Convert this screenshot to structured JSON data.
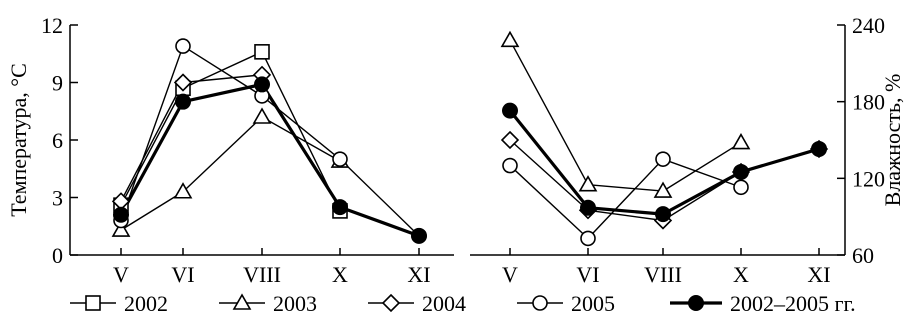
{
  "chart_data": [
    {
      "type": "line",
      "categories": [
        "V",
        "VI",
        "VIII",
        "X",
        "XI"
      ],
      "ylabel": "Температура, °C",
      "ylim": [
        0,
        12
      ],
      "yticks": [
        "0",
        "3",
        "6",
        "9",
        "12"
      ],
      "grid": false,
      "series": [
        {
          "name": "2002",
          "marker": "square",
          "values": [
            2.6,
            8.7,
            10.6,
            2.3,
            null
          ]
        },
        {
          "name": "2003",
          "marker": "triangle",
          "values": [
            1.3,
            3.3,
            7.2,
            4.9,
            null
          ]
        },
        {
          "name": "2004",
          "marker": "diamond",
          "values": [
            2.8,
            9.0,
            9.4,
            null,
            null
          ]
        },
        {
          "name": "2005",
          "marker": "circle-open",
          "values": [
            1.8,
            10.9,
            8.3,
            5.0,
            1.0
          ]
        },
        {
          "name": "2002–2005 гг.",
          "marker": "circle-filled",
          "bold": true,
          "values": [
            2.1,
            8.0,
            8.9,
            2.5,
            1.0
          ]
        }
      ]
    },
    {
      "type": "line",
      "categories": [
        "V",
        "VI",
        "VIII",
        "X",
        "XI"
      ],
      "ylabel": "Влажность, %",
      "ylim": [
        60,
        240
      ],
      "yticks": [
        "60",
        "120",
        "180",
        "240"
      ],
      "yaxis_side": "right",
      "grid": false,
      "series": [
        {
          "name": "2002",
          "marker": "square",
          "values": [
            null,
            null,
            null,
            null,
            null
          ]
        },
        {
          "name": "2003",
          "marker": "triangle",
          "values": [
            228,
            115,
            110,
            148,
            null
          ]
        },
        {
          "name": "2004",
          "marker": "diamond",
          "values": [
            150,
            95,
            87,
            125,
            143
          ]
        },
        {
          "name": "2005",
          "marker": "circle-open",
          "values": [
            130,
            73,
            135,
            113,
            null
          ]
        },
        {
          "name": "2002–2005 гг.",
          "marker": "circle-filled",
          "bold": true,
          "values": [
            173,
            97,
            92,
            125,
            143
          ]
        }
      ]
    }
  ],
  "legend": {
    "placement": "bottom",
    "items": [
      {
        "label": "2002",
        "marker": "square"
      },
      {
        "label": "2003",
        "marker": "triangle"
      },
      {
        "label": "2004",
        "marker": "diamond"
      },
      {
        "label": "2005",
        "marker": "circle-open"
      },
      {
        "label": "2002–2005 гг.",
        "marker": "circle-filled",
        "bold": true
      }
    ]
  },
  "colors": {
    "line": "#000000",
    "background": "#ffffff"
  }
}
